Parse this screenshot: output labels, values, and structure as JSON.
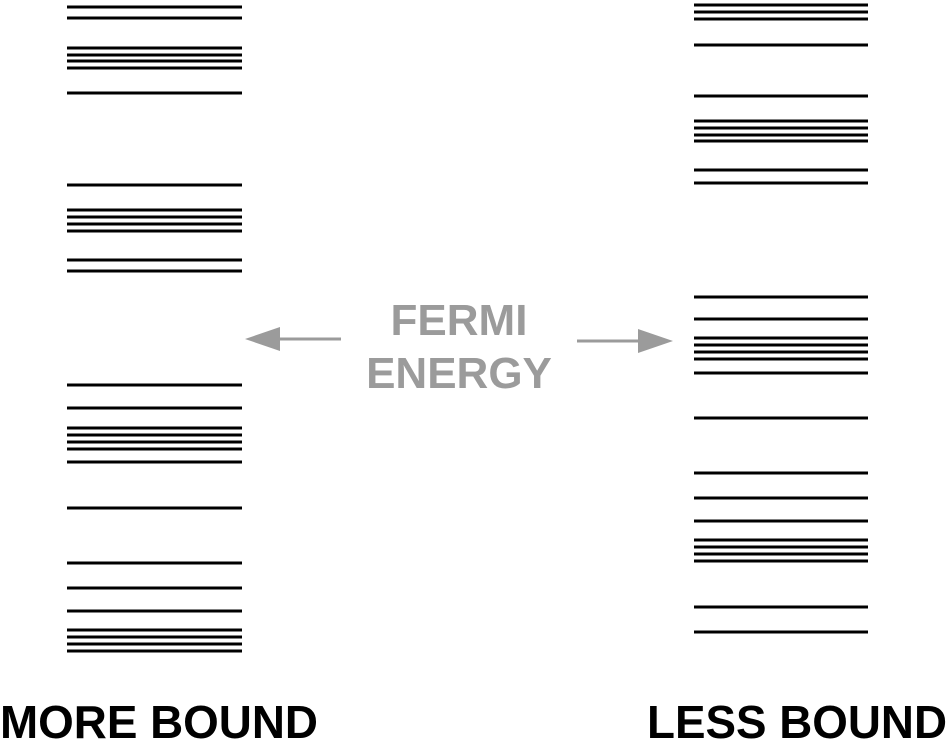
{
  "colors": {
    "levels": "#000000",
    "fermi": "#9b9b9b",
    "background": "#ffffff"
  },
  "fermi_label": {
    "line1": "FERMI",
    "line2": "ENERGY"
  },
  "left_column": {
    "label": "MORE BOUND"
  },
  "right_column": {
    "label": "LESS BOUND"
  }
}
